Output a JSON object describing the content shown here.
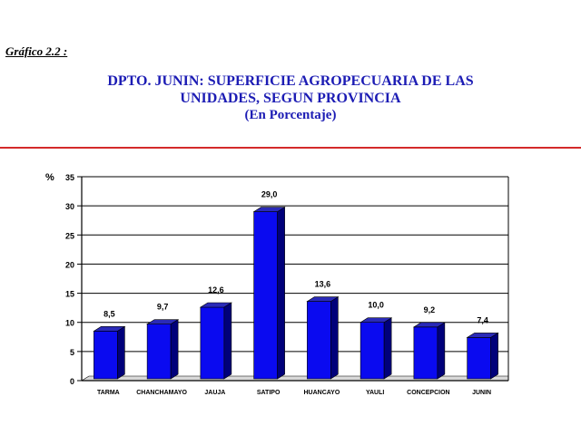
{
  "header": {
    "figure_label": "Gráfico 2.2 :",
    "title_line1": "DPTO. JUNIN: SUPERFICIE AGROPECUARIA DE LAS",
    "title_line2": "UNIDADES, SEGUN PROVINCIA",
    "subtitle": "(En Porcentaje)"
  },
  "chart_data": {
    "type": "bar",
    "title": "DPTO. JUNIN: SUPERFICIE AGROPECUARIA DE LAS UNIDADES, SEGUN PROVINCIA",
    "subtitle": "(En Porcentaje)",
    "ylabel": "%",
    "xlabel": "",
    "ylim": [
      0,
      35
    ],
    "yticks": [
      0,
      5,
      10,
      15,
      20,
      25,
      30,
      35
    ],
    "grid": true,
    "categories": [
      "TARMA",
      "CHANCHAMAYO",
      "JAUJA",
      "SATIPO",
      "HUANCAYO",
      "YAULI",
      "CONCEPCION",
      "JUNIN"
    ],
    "values": [
      8.5,
      9.7,
      12.6,
      29.0,
      13.6,
      10.0,
      9.2,
      7.4
    ],
    "value_labels": [
      "8,5",
      "9,7",
      "12,6",
      "29,0",
      "13,6",
      "10,0",
      "9,2",
      "7,4"
    ],
    "colors": {
      "bar_front": "#0a0af0",
      "bar_side": "#00007a",
      "bar_top": "#2a2ab8",
      "grid": "#000000"
    }
  }
}
